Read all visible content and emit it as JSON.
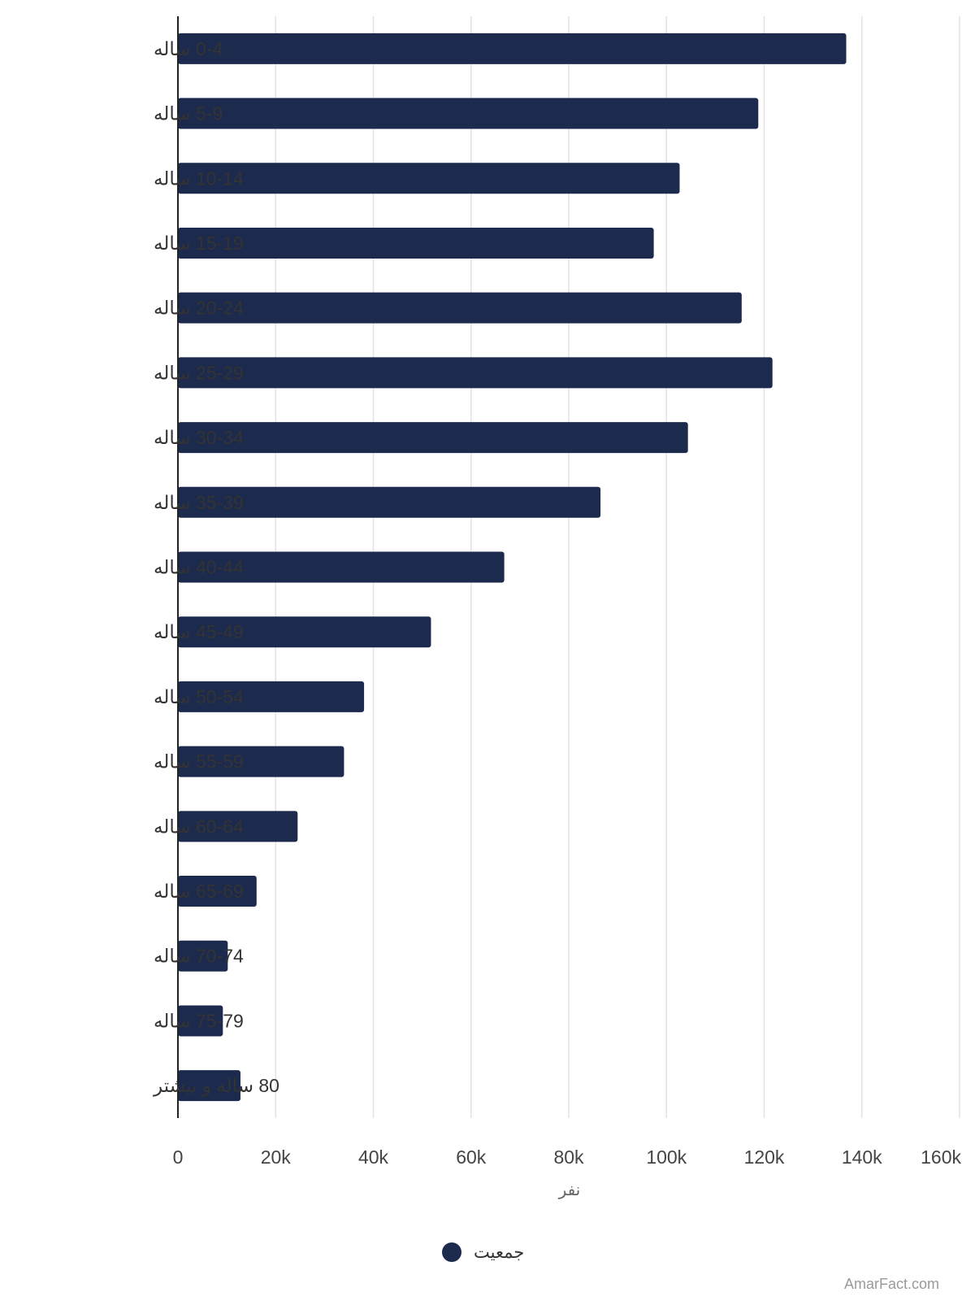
{
  "chart_data": {
    "type": "bar",
    "orientation": "horizontal",
    "categories": [
      "0-4 ساله",
      "5-9 ساله",
      "10-14 ساله",
      "15-19 ساله",
      "20-24 ساله",
      "25-29 ساله",
      "30-34 ساله",
      "35-39 ساله",
      "40-44 ساله",
      "45-49 ساله",
      "50-54 ساله",
      "55-59 ساله",
      "60-64 ساله",
      "65-69 ساله",
      "70-74 ساله",
      "75-79 ساله",
      "80 ساله و بیشتر"
    ],
    "series": [
      {
        "name": "جمعیت",
        "color": "#1c2a4d",
        "values": [
          136800,
          118800,
          102700,
          97400,
          115400,
          121700,
          104400,
          86500,
          66800,
          51800,
          38100,
          34000,
          24500,
          16100,
          10200,
          9200,
          12800
        ]
      }
    ],
    "xlabel": "نفر",
    "xlim": [
      0,
      160000
    ],
    "xticks": [
      0,
      20000,
      40000,
      60000,
      80000,
      100000,
      120000,
      140000,
      160000
    ],
    "xtick_labels": [
      "0",
      "20k",
      "40k",
      "60k",
      "80k",
      "100k",
      "120k",
      "140k",
      "160k"
    ],
    "grid": true,
    "legend_position": "bottom-center"
  },
  "credit": "AmarFact.com"
}
